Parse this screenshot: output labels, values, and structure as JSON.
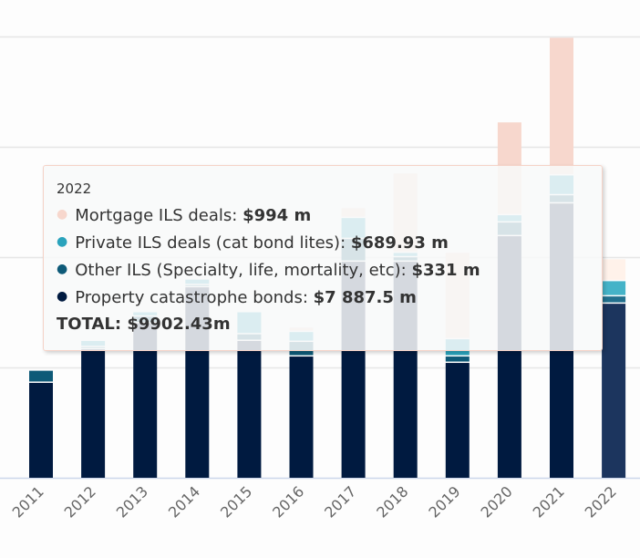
{
  "chart_data": {
    "type": "bar",
    "stacked": true,
    "categories": [
      "2011",
      "2012",
      "2013",
      "2014",
      "2015",
      "2016",
      "2017",
      "2018",
      "2019",
      "2020",
      "2021",
      "2022"
    ],
    "ylim": [
      0,
      20000
    ],
    "y_gridlines": [
      0,
      5000,
      10000,
      15000,
      20000
    ],
    "grid": true,
    "y_axis_labels_visible": false,
    "x_tick_rotation": -45,
    "series": [
      {
        "name": "Property catastrophe bonds",
        "color": "#001a40",
        "hover_color": "#1c355e",
        "values": [
          4300,
          5820,
          7000,
          8630,
          6200,
          5494,
          9790,
          9790,
          5205,
          10946,
          12430,
          7887.5
        ]
      },
      {
        "name": "Other ILS (Specialty, life, mortality, etc)",
        "color": "#0e5a78",
        "hover_color": "#22708e",
        "values": [
          550,
          100,
          300,
          100,
          300,
          660,
          1030,
          200,
          290,
          620,
          370,
          331
        ]
      },
      {
        "name": "Private ILS deals (cat bond lites)",
        "color": "#2aa3bc",
        "hover_color": "#45b3c8",
        "values": [
          0,
          280,
          200,
          250,
          1000,
          450,
          950,
          200,
          780,
          330,
          900,
          689.93
        ]
      },
      {
        "name": "Mortgage ILS deals",
        "color": "#f7d7cd",
        "hover_color": "#fff2ea",
        "values": [
          0,
          0,
          0,
          0,
          0,
          200,
          450,
          3600,
          3920,
          4210,
          6240,
          994
        ]
      }
    ],
    "hovered_category": "2022"
  },
  "tooltip": {
    "header": "2022",
    "rows": [
      {
        "label": "Mortgage ILS deals: ",
        "value": "$994 m",
        "color": "#f7d7cd"
      },
      {
        "label": "Private ILS deals (cat bond lites): ",
        "value": "$689.93 m",
        "color": "#2aa3bc"
      },
      {
        "label": "Other ILS (Specialty, life, mortality, etc): ",
        "value": "$331 m",
        "color": "#0e5a78"
      },
      {
        "label": "Property catastrophe bonds: ",
        "value": "$7 887.5 m",
        "color": "#001a40"
      }
    ],
    "total": "TOTAL: $9902.43m"
  },
  "colors": {
    "grid": "#e6e6e6",
    "axis_line": "#ccd6eb",
    "tick_label": "#666666"
  }
}
